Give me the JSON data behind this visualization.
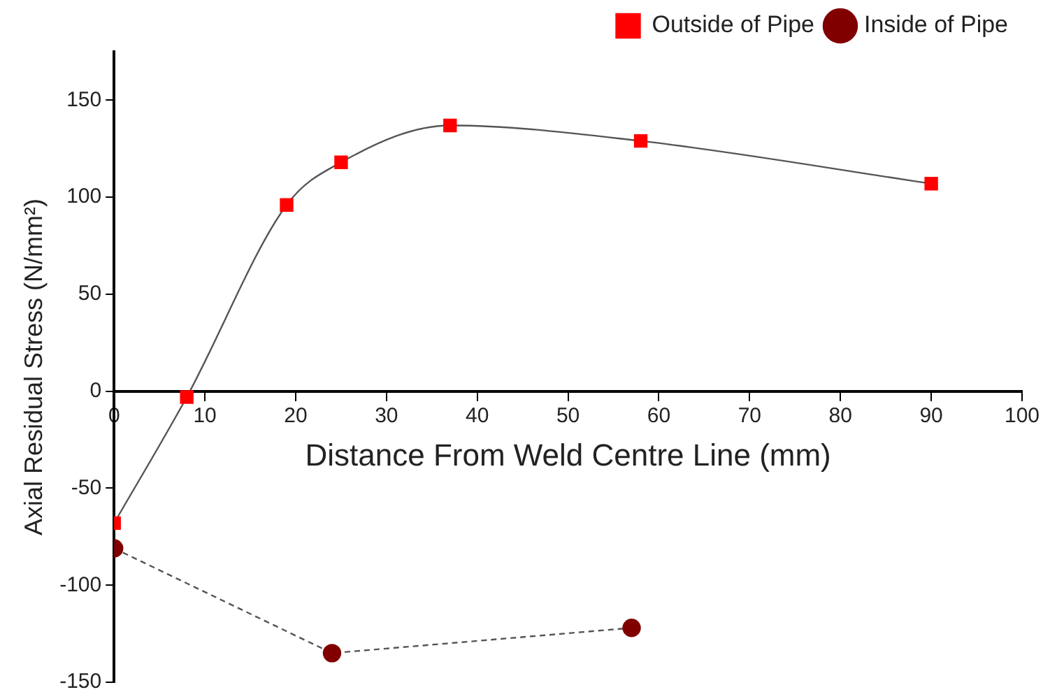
{
  "chart_data": {
    "type": "line",
    "xlabel": "Distance From Weld Centre Line (mm)",
    "ylabel": "Axial Residual Stress (N/mm²)",
    "xlim": [
      0,
      100
    ],
    "xticks": [
      0,
      10,
      20,
      30,
      40,
      50,
      60,
      70,
      80,
      90,
      100
    ],
    "ylim": [
      -150,
      175
    ],
    "yticks": [
      -150,
      -100,
      -50,
      0,
      50,
      100,
      150
    ],
    "grid": false,
    "legend": "top right",
    "series": [
      {
        "name": "Outside of Pipe",
        "color": "#ff0000",
        "marker": "square",
        "line_style": "solid",
        "x": [
          0,
          8,
          19,
          25,
          37,
          58,
          90
        ],
        "values": [
          -68,
          -3,
          96,
          118,
          137,
          129,
          107
        ]
      },
      {
        "name": "Inside of Pipe",
        "color": "#800000",
        "marker": "circle",
        "line_style": "dashed",
        "x": [
          0,
          24,
          57
        ],
        "values": [
          -81,
          -135,
          -122
        ]
      }
    ]
  }
}
